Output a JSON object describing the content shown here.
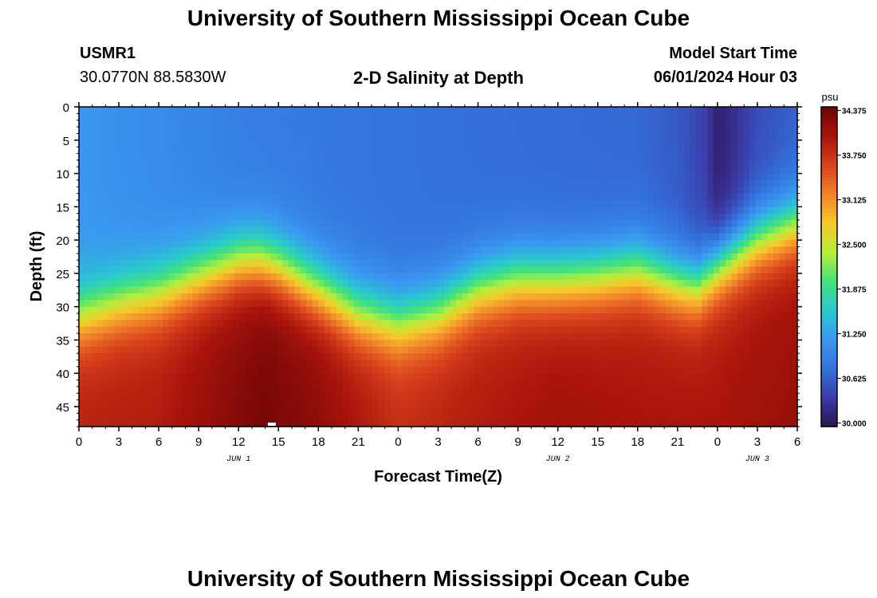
{
  "header": {
    "title": "University of Southern Mississippi Ocean Cube",
    "station_id": "USMR1",
    "coordinates": "30.0770N  88.5830W",
    "plot_title": "2-D Salinity at Depth",
    "model_start_label": "Model Start Time",
    "model_start_value": "06/01/2024 Hour 03"
  },
  "footer": {
    "title": "University of Southern Mississippi Ocean Cube"
  },
  "colors": {
    "colormap": [
      "#2a1350",
      "#3b3aa6",
      "#3371dd",
      "#3a98f0",
      "#28c9cf",
      "#43e27a",
      "#b5ef3a",
      "#f5c92a",
      "#f2852a",
      "#d9421c",
      "#a8140b",
      "#6e0508"
    ],
    "marker": "#ffffff"
  },
  "chart_data": {
    "type": "heatmap",
    "title": "2-D Salinity at Depth",
    "xlabel": "Forecast Time(Z)",
    "ylabel": "Depth (ft)",
    "x_hours_from_jun1_00z": [
      0,
      3,
      6,
      9,
      12,
      15,
      18,
      21,
      24,
      27,
      30,
      33,
      36,
      39,
      42,
      45,
      48,
      51,
      54
    ],
    "x_tick_labels": [
      "0",
      "3",
      "6",
      "9",
      "12",
      "15",
      "18",
      "21",
      "0",
      "3",
      "6",
      "9",
      "12",
      "15",
      "18",
      "21",
      "0",
      "3",
      "6"
    ],
    "x_range_hours": [
      0,
      54
    ],
    "date_labels": [
      {
        "label": "JUN 1",
        "hour": 12
      },
      {
        "label": "JUN 2",
        "hour": 36
      },
      {
        "label": "JUN 3",
        "hour": 51
      }
    ],
    "y_ticks_ft": [
      0,
      5,
      10,
      15,
      20,
      25,
      30,
      35,
      40,
      45
    ],
    "y_tick_labels": [
      "0",
      "5",
      "10",
      "15",
      "20",
      "25",
      "30",
      "35",
      "40",
      "45"
    ],
    "y_range_ft": [
      0,
      48
    ],
    "colorbar": {
      "unit": "psu",
      "range": [
        29.95,
        34.425
      ],
      "tick_values": [
        30.0,
        30.625,
        31.25,
        31.875,
        32.5,
        33.125,
        33.75,
        34.375
      ],
      "tick_labels": [
        "30.000",
        "30.625",
        "31.250",
        "31.875",
        "32.500",
        "33.125",
        "33.750",
        "34.375"
      ]
    },
    "surface_salinity_psu": [
      [
        0,
        31.15
      ],
      [
        6,
        31.05
      ],
      [
        12,
        30.9
      ],
      [
        18,
        30.85
      ],
      [
        24,
        30.8
      ],
      [
        30,
        30.75
      ],
      [
        36,
        30.72
      ],
      [
        42,
        30.7
      ],
      [
        45,
        30.6
      ],
      [
        47,
        30.4
      ],
      [
        48,
        30.1
      ],
      [
        49,
        30.2
      ],
      [
        51,
        30.5
      ],
      [
        54,
        30.65
      ]
    ],
    "halocline_depth_ft": [
      [
        0,
        31.5
      ],
      [
        3,
        29.5
      ],
      [
        6,
        28.0
      ],
      [
        9,
        25.5
      ],
      [
        12,
        23.2
      ],
      [
        13.5,
        23.0
      ],
      [
        15,
        24.0
      ],
      [
        18,
        27.5
      ],
      [
        21,
        31.0
      ],
      [
        24,
        32.5
      ],
      [
        27,
        31.0
      ],
      [
        30,
        27.5
      ],
      [
        33,
        26.0
      ],
      [
        36,
        26.0
      ],
      [
        39,
        25.5
      ],
      [
        42,
        24.5
      ],
      [
        45,
        26.5
      ],
      [
        46.5,
        27.0
      ],
      [
        48,
        24.0
      ],
      [
        51,
        20.0
      ],
      [
        54,
        17.5
      ]
    ],
    "max_salinity_psu": [
      [
        0,
        33.85
      ],
      [
        6,
        33.9
      ],
      [
        12,
        34.2
      ],
      [
        14,
        34.3
      ],
      [
        18,
        34.15
      ],
      [
        24,
        33.75
      ],
      [
        30,
        33.9
      ],
      [
        36,
        34.0
      ],
      [
        42,
        33.95
      ],
      [
        48,
        33.95
      ],
      [
        54,
        34.05
      ]
    ],
    "marker_hour": 14.5
  }
}
